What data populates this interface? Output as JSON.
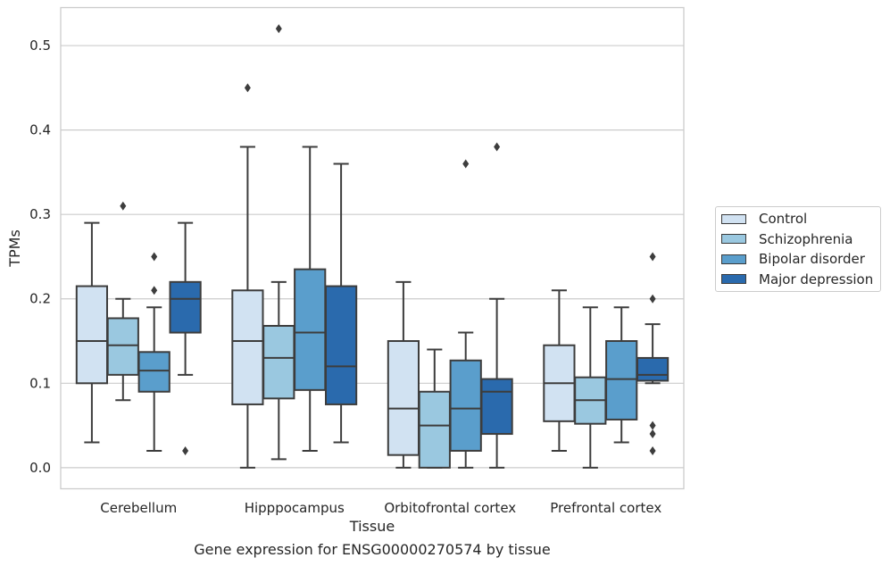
{
  "chart_data": {
    "type": "box",
    "xlabel": "Tissue",
    "ylabel": "TPMs",
    "caption": "Gene expression for ENSG00000270574 by tissue",
    "ylim": [
      -0.025,
      0.545
    ],
    "yticks": [
      0.0,
      0.1,
      0.2,
      0.3,
      0.4,
      0.5
    ],
    "ytick_labels": [
      "0.0",
      "0.1",
      "0.2",
      "0.3",
      "0.4",
      "0.5"
    ],
    "grid": "horizontal",
    "legend_position": "outside-right",
    "categories": [
      "Cerebellum",
      "Hipppocampus",
      "Orbitofrontal cortex",
      "Prefrontal cortex"
    ],
    "series": [
      {
        "name": "Control",
        "color": "#d1e2f2",
        "boxes": [
          {
            "whislo": 0.03,
            "q1": 0.1,
            "med": 0.15,
            "q3": 0.215,
            "whishi": 0.29,
            "fliers": []
          },
          {
            "whislo": 0.0,
            "q1": 0.075,
            "med": 0.15,
            "q3": 0.21,
            "whishi": 0.38,
            "fliers": [
              0.45
            ]
          },
          {
            "whislo": 0.0,
            "q1": 0.015,
            "med": 0.07,
            "q3": 0.15,
            "whishi": 0.22,
            "fliers": []
          },
          {
            "whislo": 0.02,
            "q1": 0.055,
            "med": 0.1,
            "q3": 0.145,
            "whishi": 0.21,
            "fliers": []
          }
        ]
      },
      {
        "name": "Schizophrenia",
        "color": "#9ac8e0",
        "boxes": [
          {
            "whislo": 0.08,
            "q1": 0.11,
            "med": 0.145,
            "q3": 0.177,
            "whishi": 0.2,
            "fliers": [
              0.31
            ]
          },
          {
            "whislo": 0.01,
            "q1": 0.082,
            "med": 0.13,
            "q3": 0.168,
            "whishi": 0.22,
            "fliers": [
              0.52
            ]
          },
          {
            "whislo": 0.0,
            "q1": 0.0,
            "med": 0.05,
            "q3": 0.09,
            "whishi": 0.14,
            "fliers": []
          },
          {
            "whislo": 0.0,
            "q1": 0.052,
            "med": 0.08,
            "q3": 0.107,
            "whishi": 0.19,
            "fliers": []
          }
        ]
      },
      {
        "name": "Bipolar disorder",
        "color": "#5a9ecc",
        "boxes": [
          {
            "whislo": 0.02,
            "q1": 0.09,
            "med": 0.115,
            "q3": 0.137,
            "whishi": 0.19,
            "fliers": [
              0.21,
              0.25
            ]
          },
          {
            "whislo": 0.02,
            "q1": 0.092,
            "med": 0.16,
            "q3": 0.235,
            "whishi": 0.38,
            "fliers": []
          },
          {
            "whislo": 0.0,
            "q1": 0.02,
            "med": 0.07,
            "q3": 0.127,
            "whishi": 0.16,
            "fliers": [
              0.36
            ]
          },
          {
            "whislo": 0.03,
            "q1": 0.057,
            "med": 0.105,
            "q3": 0.15,
            "whishi": 0.19,
            "fliers": []
          }
        ]
      },
      {
        "name": "Major depression",
        "color": "#2a6aad",
        "boxes": [
          {
            "whislo": 0.11,
            "q1": 0.16,
            "med": 0.2,
            "q3": 0.22,
            "whishi": 0.29,
            "fliers": [
              0.02
            ]
          },
          {
            "whislo": 0.03,
            "q1": 0.075,
            "med": 0.12,
            "q3": 0.215,
            "whishi": 0.36,
            "fliers": []
          },
          {
            "whislo": 0.0,
            "q1": 0.04,
            "med": 0.09,
            "q3": 0.105,
            "whishi": 0.2,
            "fliers": [
              0.38
            ]
          },
          {
            "whislo": 0.1,
            "q1": 0.103,
            "med": 0.11,
            "q3": 0.13,
            "whishi": 0.17,
            "fliers": [
              0.02,
              0.04,
              0.05,
              0.2,
              0.25
            ]
          }
        ]
      }
    ]
  }
}
